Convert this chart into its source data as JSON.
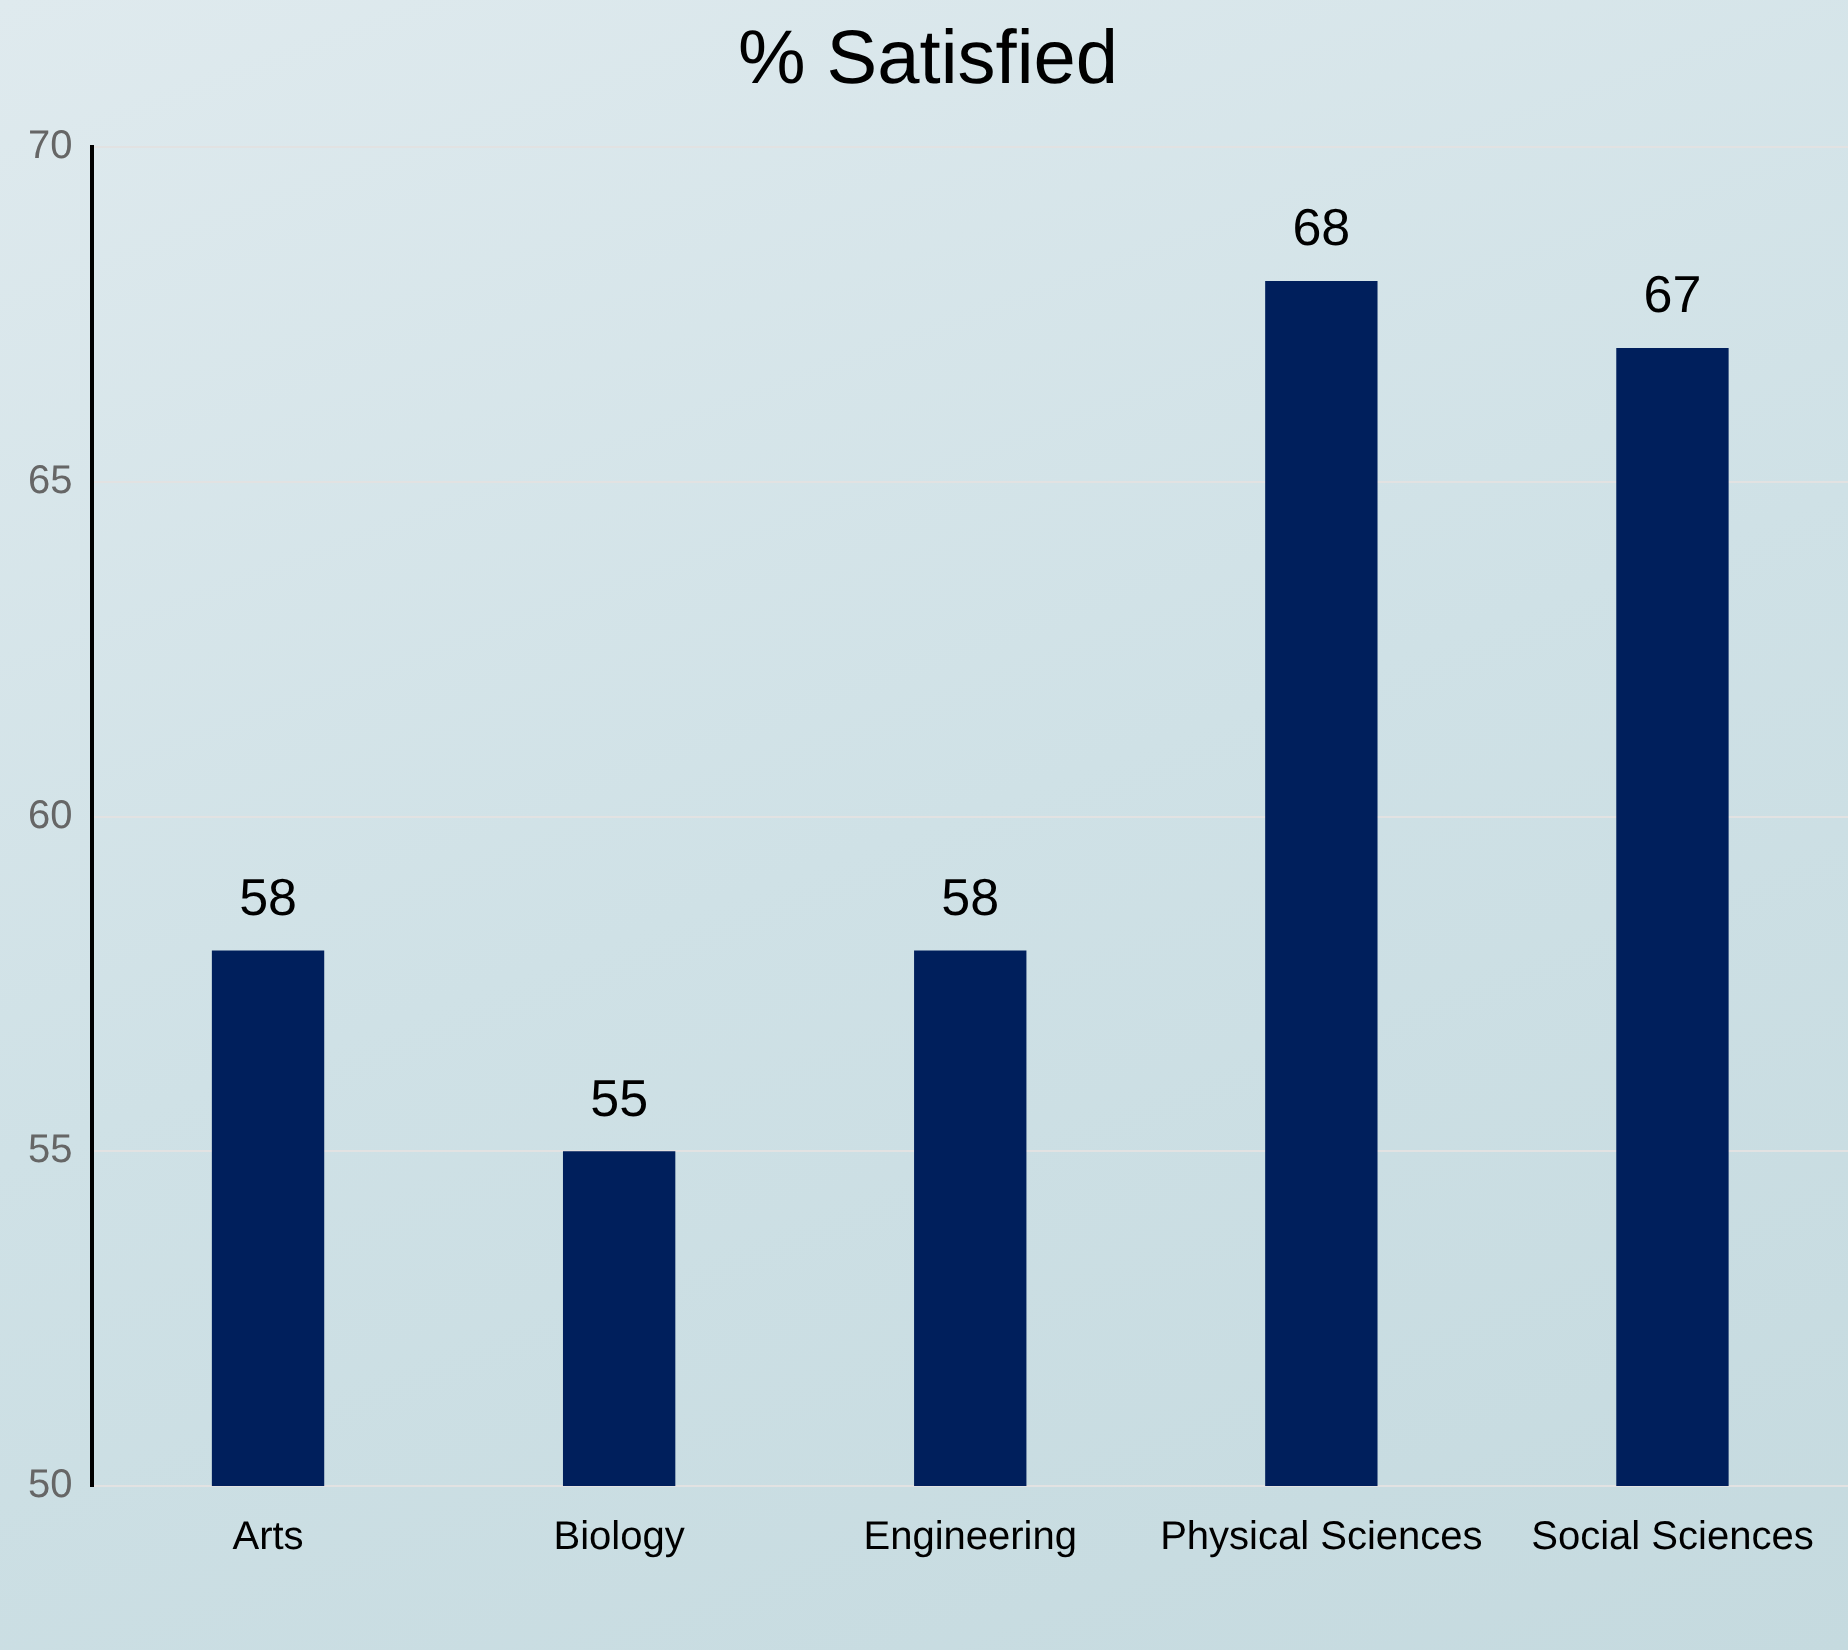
{
  "chart_data": {
    "type": "bar",
    "title": "% Satisfied",
    "categories": [
      "Arts",
      "Biology",
      "Engineering",
      "Physical Sciences",
      "Social Sciences"
    ],
    "values": [
      58,
      55,
      58,
      68,
      67
    ],
    "color": "#001f5c",
    "ylim": [
      50,
      70
    ],
    "yticks": [
      50,
      55,
      60,
      65,
      70
    ],
    "grid": "y",
    "data_labels": true,
    "legend": false
  }
}
